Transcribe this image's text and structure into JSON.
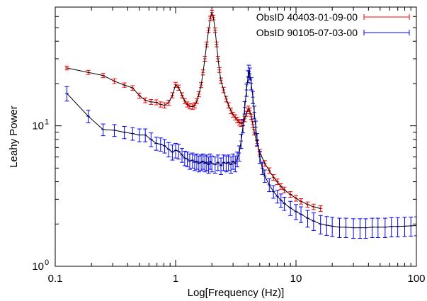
{
  "chart_data": {
    "type": "line",
    "title": "",
    "xlabel": "Log[Frequency (Hz)]",
    "ylabel": "Leahy Power",
    "xscale": "log",
    "yscale": "log",
    "xlim": [
      0.1,
      100
    ],
    "ylim": [
      1,
      70
    ],
    "x_ticks": [
      {
        "value": 0.1,
        "label": "0.1"
      },
      {
        "value": 1,
        "label": "1"
      },
      {
        "value": 10,
        "label": "10"
      },
      {
        "value": 100,
        "label": "100"
      }
    ],
    "y_ticks": [
      {
        "value": 1,
        "base": "10",
        "exp": "0"
      },
      {
        "value": 10,
        "base": "10",
        "exp": "1"
      }
    ],
    "legend_position": "top-right",
    "grid": false,
    "series": [
      {
        "name": "ObsID 40403-01-09-00",
        "color": "#ff0000",
        "points": [
          [
            0.125,
            25.8
          ],
          [
            0.188,
            24.0
          ],
          [
            0.25,
            22.8
          ],
          [
            0.31,
            20.8
          ],
          [
            0.375,
            19.5
          ],
          [
            0.44,
            18.6
          ],
          [
            0.5,
            16.4
          ],
          [
            0.56,
            15.2
          ],
          [
            0.625,
            14.8
          ],
          [
            0.69,
            14.7
          ],
          [
            0.75,
            14.2
          ],
          [
            0.81,
            14.0
          ],
          [
            0.875,
            14.6
          ],
          [
            0.94,
            16.5
          ],
          [
            1.0,
            19.6
          ],
          [
            1.06,
            18.7
          ],
          [
            1.13,
            16.5
          ],
          [
            1.19,
            15.0
          ],
          [
            1.25,
            14.2
          ],
          [
            1.31,
            13.8
          ],
          [
            1.38,
            13.7
          ],
          [
            1.44,
            14.0
          ],
          [
            1.5,
            15.0
          ],
          [
            1.56,
            16.8
          ],
          [
            1.63,
            19.5
          ],
          [
            1.69,
            24.0
          ],
          [
            1.75,
            30.0
          ],
          [
            1.81,
            38.0
          ],
          [
            1.88,
            48.0
          ],
          [
            1.94,
            58.0
          ],
          [
            2.0,
            64.0
          ],
          [
            2.06,
            59.0
          ],
          [
            2.13,
            48.0
          ],
          [
            2.19,
            38.0
          ],
          [
            2.25,
            30.0
          ],
          [
            2.31,
            25.0
          ],
          [
            2.38,
            21.0
          ],
          [
            2.5,
            18.0
          ],
          [
            2.63,
            15.5
          ],
          [
            2.75,
            14.0
          ],
          [
            2.88,
            12.8
          ],
          [
            3.0,
            12.0
          ],
          [
            3.13,
            11.5
          ],
          [
            3.25,
            11.0
          ],
          [
            3.38,
            10.6
          ],
          [
            3.5,
            10.4
          ],
          [
            3.63,
            10.6
          ],
          [
            3.75,
            11.2
          ],
          [
            3.88,
            12.2
          ],
          [
            4.0,
            13.2
          ],
          [
            4.13,
            12.8
          ],
          [
            4.25,
            11.6
          ],
          [
            4.38,
            10.2
          ],
          [
            4.5,
            9.0
          ],
          [
            4.75,
            7.5
          ],
          [
            5.0,
            6.5
          ],
          [
            5.5,
            5.4
          ],
          [
            6.0,
            4.8
          ],
          [
            6.5,
            4.3
          ],
          [
            7.0,
            4.0
          ],
          [
            7.5,
            3.7
          ],
          [
            8.0,
            3.5
          ],
          [
            9.0,
            3.25
          ],
          [
            10.0,
            3.05
          ],
          [
            11.0,
            2.9
          ],
          [
            12.5,
            2.75
          ],
          [
            14.0,
            2.65
          ],
          [
            16.0,
            2.58
          ]
        ],
        "errors": [
          0.8,
          0.8,
          0.8,
          0.8,
          0.7,
          0.7,
          0.7,
          0.6,
          0.6,
          0.6,
          0.6,
          0.6,
          0.6,
          0.7,
          0.8,
          0.8,
          0.7,
          0.6,
          0.6,
          0.6,
          0.6,
          0.6,
          0.6,
          0.7,
          0.8,
          1.0,
          1.2,
          1.5,
          1.8,
          2.2,
          2.5,
          2.2,
          1.8,
          1.5,
          1.2,
          1.0,
          0.9,
          0.8,
          0.7,
          0.6,
          0.6,
          0.5,
          0.5,
          0.5,
          0.5,
          0.5,
          0.5,
          0.5,
          0.5,
          0.6,
          0.6,
          0.5,
          0.5,
          0.4,
          0.35,
          0.3,
          0.25,
          0.22,
          0.2,
          0.18,
          0.17,
          0.16,
          0.15,
          0.14,
          0.13,
          0.12,
          0.12,
          0.12
        ]
      },
      {
        "name": "ObsID 90105-07-03-00",
        "color": "#0000ff",
        "points": [
          [
            0.125,
            17.0
          ],
          [
            0.188,
            11.7
          ],
          [
            0.25,
            9.4
          ],
          [
            0.31,
            9.3
          ],
          [
            0.375,
            9.0
          ],
          [
            0.44,
            8.8
          ],
          [
            0.5,
            8.6
          ],
          [
            0.56,
            8.6
          ],
          [
            0.625,
            8.0
          ],
          [
            0.69,
            7.5
          ],
          [
            0.75,
            7.4
          ],
          [
            0.81,
            7.2
          ],
          [
            0.875,
            6.8
          ],
          [
            0.94,
            6.5
          ],
          [
            1.0,
            6.7
          ],
          [
            1.06,
            6.6
          ],
          [
            1.13,
            6.2
          ],
          [
            1.19,
            5.9
          ],
          [
            1.25,
            5.8
          ],
          [
            1.31,
            5.6
          ],
          [
            1.38,
            5.7
          ],
          [
            1.44,
            5.5
          ],
          [
            1.5,
            5.6
          ],
          [
            1.56,
            5.4
          ],
          [
            1.63,
            5.5
          ],
          [
            1.69,
            5.6
          ],
          [
            1.75,
            5.4
          ],
          [
            1.81,
            5.5
          ],
          [
            1.88,
            5.3
          ],
          [
            1.94,
            5.6
          ],
          [
            2.0,
            5.4
          ],
          [
            2.13,
            5.3
          ],
          [
            2.25,
            5.5
          ],
          [
            2.38,
            5.2
          ],
          [
            2.5,
            5.5
          ],
          [
            2.63,
            5.4
          ],
          [
            2.75,
            5.5
          ],
          [
            2.88,
            5.3
          ],
          [
            3.0,
            5.6
          ],
          [
            3.13,
            5.4
          ],
          [
            3.25,
            5.8
          ],
          [
            3.38,
            6.4
          ],
          [
            3.5,
            7.8
          ],
          [
            3.63,
            10.0
          ],
          [
            3.75,
            13.5
          ],
          [
            3.88,
            18.0
          ],
          [
            4.0,
            22.5
          ],
          [
            4.06,
            24.5
          ],
          [
            4.13,
            23.5
          ],
          [
            4.25,
            20.0
          ],
          [
            4.38,
            16.0
          ],
          [
            4.5,
            12.5
          ],
          [
            4.63,
            9.8
          ],
          [
            4.75,
            8.0
          ],
          [
            5.0,
            6.0
          ],
          [
            5.25,
            5.0
          ],
          [
            5.5,
            4.4
          ],
          [
            6.0,
            3.8
          ],
          [
            6.5,
            3.4
          ],
          [
            7.0,
            3.15
          ],
          [
            7.5,
            2.95
          ],
          [
            8.0,
            2.8
          ],
          [
            9.0,
            2.6
          ],
          [
            10.0,
            2.45
          ],
          [
            11.0,
            2.35
          ],
          [
            12.5,
            2.2
          ],
          [
            14.0,
            2.1
          ],
          [
            16.0,
            2.0
          ],
          [
            18.0,
            1.96
          ],
          [
            20.0,
            1.93
          ],
          [
            23.0,
            1.9
          ],
          [
            26.0,
            1.9
          ],
          [
            30.0,
            1.88
          ],
          [
            34.0,
            1.88
          ],
          [
            38.0,
            1.88
          ],
          [
            43.0,
            1.9
          ],
          [
            48.0,
            1.9
          ],
          [
            55.0,
            1.9
          ],
          [
            62.0,
            1.92
          ],
          [
            70.0,
            1.92
          ],
          [
            80.0,
            1.93
          ],
          [
            90.0,
            1.94
          ],
          [
            100.0,
            1.95
          ]
        ],
        "errors": [
          2.0,
          1.2,
          0.9,
          0.9,
          0.9,
          0.9,
          0.9,
          0.9,
          0.9,
          0.8,
          0.8,
          0.8,
          0.8,
          0.8,
          0.8,
          0.8,
          0.7,
          0.7,
          0.7,
          0.7,
          0.7,
          0.7,
          0.7,
          0.7,
          0.7,
          0.7,
          0.7,
          0.7,
          0.7,
          0.7,
          0.7,
          0.7,
          0.7,
          0.7,
          0.7,
          0.7,
          0.7,
          0.7,
          0.7,
          0.7,
          0.7,
          0.8,
          0.9,
          1.1,
          1.4,
          1.8,
          2.2,
          2.5,
          2.3,
          2.0,
          1.6,
          1.3,
          1.0,
          0.8,
          0.6,
          0.5,
          0.45,
          0.4,
          0.35,
          0.33,
          0.32,
          0.3,
          0.3,
          0.3,
          0.3,
          0.3,
          0.3,
          0.3,
          0.3,
          0.3,
          0.3,
          0.3,
          0.3,
          0.3,
          0.3,
          0.3,
          0.3,
          0.3,
          0.3,
          0.3,
          0.3,
          0.3,
          0.3
        ]
      }
    ]
  }
}
